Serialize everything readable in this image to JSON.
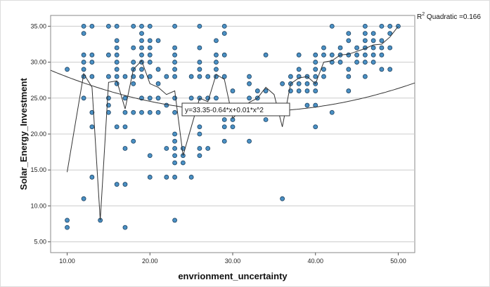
{
  "chart_data": {
    "type": "scatter",
    "xlabel": "envrionment_uncertainty",
    "ylabel": "Solar_Energy_Investment",
    "xlim": [
      8,
      52
    ],
    "ylim": [
      3.5,
      36.5
    ],
    "x_ticks": [
      "10.00",
      "20.00",
      "30.00",
      "40.00",
      "50.00"
    ],
    "y_ticks": [
      "5.00",
      "10.00",
      "15.00",
      "20.00",
      "25.00",
      "30.00",
      "35.00"
    ],
    "grid": "horizontal",
    "r2_label": "R",
    "r2_sup": "2",
    "r2_text": " Quadratic =0.166",
    "equation": "y=33.35-0.64*x+0.01*x^2",
    "fit": {
      "type": "quadratic",
      "coefficients": [
        33.35,
        -0.64,
        0.01
      ]
    },
    "colors": {
      "point_fill": "#4a90c4",
      "point_stroke": "#1b3f5e",
      "grid": "#cccccc",
      "line": "#333333"
    },
    "points": [
      [
        10,
        8
      ],
      [
        10,
        7
      ],
      [
        10,
        29
      ],
      [
        12,
        35
      ],
      [
        12,
        34
      ],
      [
        12,
        31
      ],
      [
        12,
        30
      ],
      [
        12,
        29
      ],
      [
        12,
        28
      ],
      [
        12,
        25
      ],
      [
        12,
        11
      ],
      [
        13,
        35
      ],
      [
        13,
        31
      ],
      [
        13,
        30
      ],
      [
        13,
        28
      ],
      [
        13,
        23
      ],
      [
        13,
        21
      ],
      [
        13,
        14
      ],
      [
        14,
        8
      ],
      [
        15,
        35
      ],
      [
        15,
        31
      ],
      [
        15,
        28
      ],
      [
        15,
        25
      ],
      [
        15,
        24
      ],
      [
        15,
        23
      ],
      [
        16,
        35
      ],
      [
        16,
        33
      ],
      [
        16,
        32
      ],
      [
        16,
        31
      ],
      [
        16,
        30
      ],
      [
        16,
        29
      ],
      [
        16,
        28
      ],
      [
        16,
        27
      ],
      [
        16,
        21
      ],
      [
        16,
        13
      ],
      [
        17,
        28
      ],
      [
        17,
        25
      ],
      [
        17,
        23
      ],
      [
        17,
        21
      ],
      [
        17,
        18
      ],
      [
        17,
        13
      ],
      [
        17,
        7
      ],
      [
        18,
        35
      ],
      [
        18,
        32
      ],
      [
        18,
        30
      ],
      [
        18,
        29
      ],
      [
        18,
        28
      ],
      [
        18,
        27
      ],
      [
        18,
        23
      ],
      [
        18,
        19
      ],
      [
        19,
        35
      ],
      [
        19,
        34
      ],
      [
        19,
        33
      ],
      [
        19,
        32
      ],
      [
        19,
        31
      ],
      [
        19,
        30
      ],
      [
        19,
        29
      ],
      [
        19,
        28
      ],
      [
        19,
        25
      ],
      [
        19,
        23
      ],
      [
        20,
        35
      ],
      [
        20,
        33
      ],
      [
        20,
        32
      ],
      [
        20,
        31
      ],
      [
        20,
        30
      ],
      [
        20,
        28
      ],
      [
        20,
        25
      ],
      [
        20,
        23
      ],
      [
        20,
        17
      ],
      [
        20,
        14
      ],
      [
        21,
        33
      ],
      [
        21,
        29
      ],
      [
        21,
        27
      ],
      [
        21,
        25
      ],
      [
        21,
        23
      ],
      [
        22,
        28
      ],
      [
        22,
        24
      ],
      [
        22,
        18
      ],
      [
        22,
        14
      ],
      [
        23,
        35
      ],
      [
        23,
        32
      ],
      [
        23,
        31
      ],
      [
        23,
        30
      ],
      [
        23,
        29
      ],
      [
        23,
        28
      ],
      [
        23,
        25
      ],
      [
        23,
        23
      ],
      [
        23,
        20
      ],
      [
        23,
        19
      ],
      [
        23,
        18
      ],
      [
        23,
        17
      ],
      [
        23,
        16
      ],
      [
        23,
        14
      ],
      [
        23,
        8
      ],
      [
        24,
        18
      ],
      [
        24,
        17
      ],
      [
        24,
        16
      ],
      [
        25,
        28
      ],
      [
        25,
        25
      ],
      [
        25,
        14
      ],
      [
        26,
        35
      ],
      [
        26,
        32
      ],
      [
        26,
        30
      ],
      [
        26,
        29
      ],
      [
        26,
        28
      ],
      [
        26,
        25
      ],
      [
        26,
        24
      ],
      [
        26,
        21
      ],
      [
        26,
        20
      ],
      [
        26,
        18
      ],
      [
        26,
        17
      ],
      [
        27,
        28
      ],
      [
        27,
        25
      ],
      [
        27,
        18
      ],
      [
        28,
        33
      ],
      [
        28,
        31
      ],
      [
        28,
        30
      ],
      [
        28,
        29
      ],
      [
        28,
        28
      ],
      [
        28,
        25
      ],
      [
        28,
        24
      ],
      [
        29,
        35
      ],
      [
        29,
        34
      ],
      [
        29,
        31
      ],
      [
        29,
        28
      ],
      [
        29,
        23
      ],
      [
        29,
        22
      ],
      [
        29,
        21
      ],
      [
        29,
        19
      ],
      [
        30,
        26
      ],
      [
        30,
        24
      ],
      [
        30,
        23
      ],
      [
        30,
        22
      ],
      [
        30,
        21
      ],
      [
        32,
        28
      ],
      [
        32,
        27
      ],
      [
        32,
        25
      ],
      [
        32,
        19
      ],
      [
        33,
        26
      ],
      [
        33,
        25
      ],
      [
        33,
        24
      ],
      [
        34,
        31
      ],
      [
        34,
        26
      ],
      [
        34,
        22
      ],
      [
        35,
        24
      ],
      [
        36,
        27
      ],
      [
        36,
        24
      ],
      [
        36,
        11
      ],
      [
        37,
        28
      ],
      [
        37,
        27
      ],
      [
        37,
        26
      ],
      [
        38,
        31
      ],
      [
        38,
        29
      ],
      [
        38,
        28
      ],
      [
        38,
        27
      ],
      [
        38,
        26
      ],
      [
        39,
        28
      ],
      [
        39,
        27
      ],
      [
        39,
        26
      ],
      [
        39,
        24
      ],
      [
        40,
        31
      ],
      [
        40,
        30
      ],
      [
        40,
        29
      ],
      [
        40,
        28
      ],
      [
        40,
        27
      ],
      [
        40,
        26
      ],
      [
        40,
        24
      ],
      [
        40,
        21
      ],
      [
        41,
        32
      ],
      [
        41,
        31
      ],
      [
        41,
        29
      ],
      [
        41,
        28
      ],
      [
        42,
        35
      ],
      [
        42,
        31
      ],
      [
        42,
        30
      ],
      [
        42,
        23
      ],
      [
        43,
        32
      ],
      [
        43,
        31
      ],
      [
        43,
        30
      ],
      [
        44,
        34
      ],
      [
        44,
        33
      ],
      [
        44,
        31
      ],
      [
        44,
        29
      ],
      [
        44,
        28
      ],
      [
        44,
        26
      ],
      [
        45,
        32
      ],
      [
        45,
        31
      ],
      [
        45,
        30
      ],
      [
        46,
        35
      ],
      [
        46,
        34
      ],
      [
        46,
        33
      ],
      [
        46,
        32
      ],
      [
        46,
        31
      ],
      [
        46,
        30
      ],
      [
        46,
        28
      ],
      [
        47,
        34
      ],
      [
        47,
        33
      ],
      [
        47,
        32
      ],
      [
        47,
        31
      ],
      [
        47,
        30
      ],
      [
        48,
        35
      ],
      [
        48,
        33
      ],
      [
        48,
        32
      ],
      [
        48,
        31
      ],
      [
        48,
        29
      ],
      [
        49,
        35
      ],
      [
        49,
        34
      ],
      [
        49,
        32
      ],
      [
        49,
        29
      ],
      [
        50,
        35
      ]
    ],
    "mean_line": [
      [
        10,
        14.7
      ],
      [
        12,
        28.4
      ],
      [
        13,
        26.5
      ],
      [
        14,
        8
      ],
      [
        15,
        27.2
      ],
      [
        16,
        27.4
      ],
      [
        17,
        23.5
      ],
      [
        18,
        29
      ],
      [
        19,
        30.2
      ],
      [
        20,
        27
      ],
      [
        21,
        26.5
      ],
      [
        22,
        25.5
      ],
      [
        23,
        26
      ],
      [
        24,
        17
      ],
      [
        25,
        21
      ],
      [
        26,
        25
      ],
      [
        27,
        24.5
      ],
      [
        28,
        28.3
      ],
      [
        29,
        27.6
      ],
      [
        30,
        22.2
      ],
      [
        32,
        24.4
      ],
      [
        33,
        25
      ],
      [
        34,
        26.5
      ],
      [
        35,
        25.5
      ],
      [
        36,
        21
      ],
      [
        37,
        27
      ],
      [
        38,
        27.8
      ],
      [
        39,
        28
      ],
      [
        40,
        27
      ],
      [
        41,
        30
      ],
      [
        42,
        30.2
      ],
      [
        43,
        31
      ],
      [
        44,
        31.1
      ],
      [
        45,
        31.5
      ],
      [
        46,
        31.9
      ],
      [
        47,
        32.4
      ],
      [
        48,
        32.5
      ],
      [
        49,
        33.5
      ],
      [
        50,
        35
      ]
    ]
  }
}
